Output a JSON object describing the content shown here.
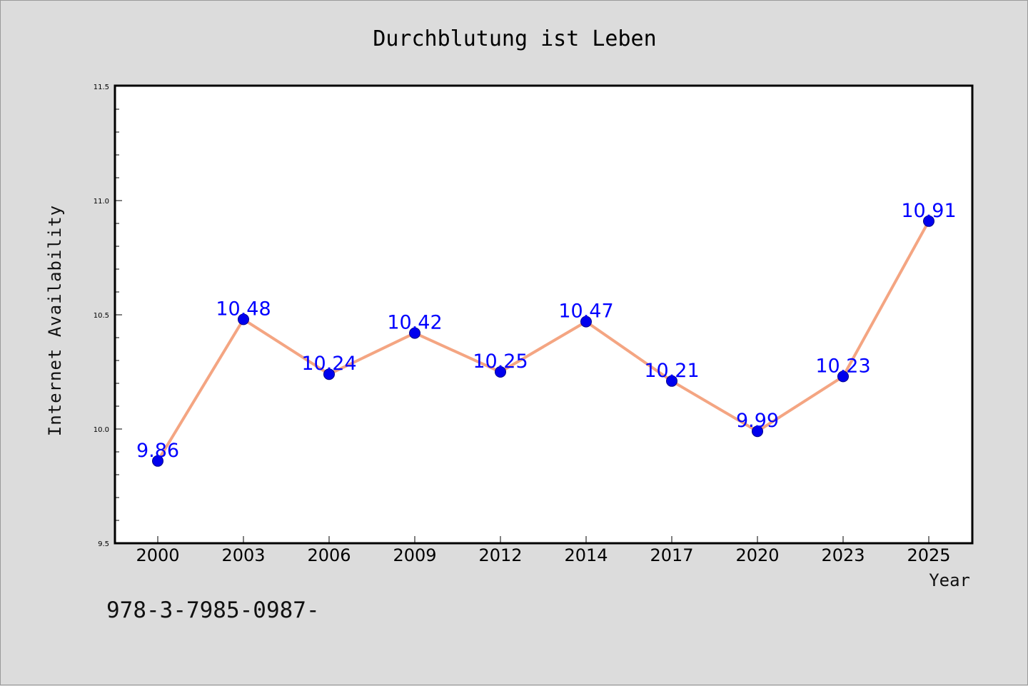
{
  "chart_data": {
    "type": "line",
    "title": "Durchblutung ist Leben",
    "xlabel": "Year",
    "ylabel": "Internet Availability",
    "categories": [
      "2000",
      "2003",
      "2006",
      "2009",
      "2012",
      "2014",
      "2017",
      "2020",
      "2023",
      "2025"
    ],
    "series": [
      {
        "values": [
          9.86,
          10.48,
          10.24,
          10.42,
          10.25,
          10.47,
          10.21,
          9.99,
          10.23,
          10.91
        ],
        "line_color": "#f4a582",
        "marker_color": "#0000ee",
        "label_color": "#0000ff"
      }
    ],
    "data_labels": [
      "9.86",
      "10.48",
      "10.24",
      "10.42",
      "10.25",
      "10.47",
      "10.21",
      "9.99",
      "10.23",
      "10.91"
    ],
    "ylim": [
      9.5,
      11.5
    ],
    "yticks": [
      9.5,
      10.0,
      10.5,
      11.0,
      11.5
    ],
    "ytick_labels": [
      "9.5",
      "10.0",
      "10.5",
      "11.0",
      "11.5"
    ],
    "grid": false,
    "legend": "none"
  },
  "footer_text": "978-3-7985-0987-"
}
